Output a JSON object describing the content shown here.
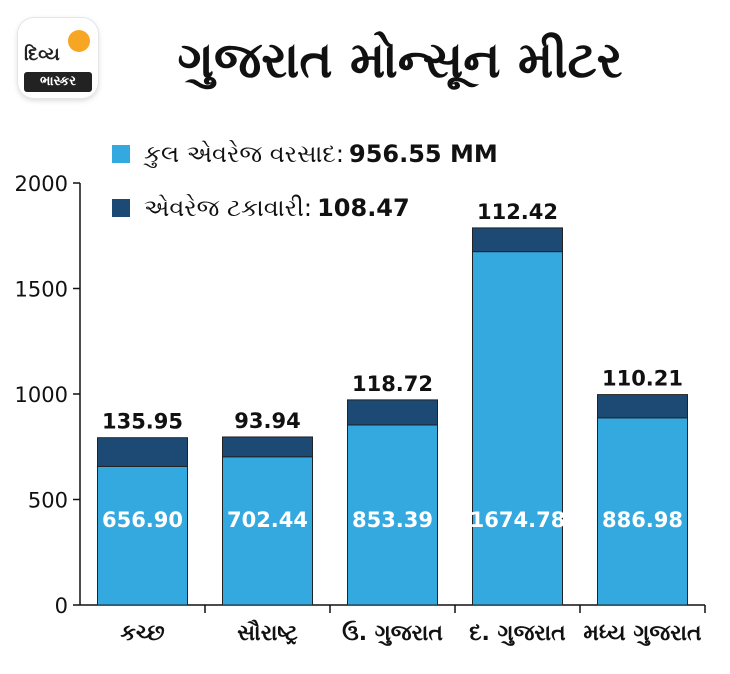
{
  "logo": {
    "line1": "દિવ્ય",
    "line2": "ભાસ્કર"
  },
  "title": "ગુજરાત મોન્સૂન મીટર",
  "colors": {
    "total": "#33a9e0",
    "percent": "#1c4a74",
    "axis": "#111111"
  },
  "legend": [
    {
      "label": "કુલ એવરેજ વરસાદ:",
      "value": "956.55 MM",
      "color": "#33a9e0"
    },
    {
      "label": "એવરેજ ટકાવારી:",
      "value": "108.47",
      "color": "#1c4a74"
    }
  ],
  "chart_data": {
    "type": "bar",
    "stacked": true,
    "categories": [
      "કચ્છ",
      "સૌરાષ્ટ્ર",
      "ઉ. ગુજરાત",
      "દ. ગુજરાત",
      "મધ્ય ગુજરાત"
    ],
    "series": [
      {
        "name": "કુલ એવરેજ વરસાદ",
        "values": [
          656.9,
          702.44,
          853.39,
          1674.78,
          886.98
        ]
      },
      {
        "name": "એવરેજ ટકાવારી",
        "values": [
          135.95,
          93.94,
          118.72,
          112.42,
          110.21
        ]
      }
    ],
    "bar_label_top": [
      "135.95",
      "93.94",
      "118.72",
      "112.42",
      "110.21"
    ],
    "bar_label_inside": [
      "656.90",
      "702.44",
      "853.39",
      "1674.78",
      "886.98"
    ],
    "yticks": [
      "0",
      "500",
      "1000",
      "1500",
      "2000"
    ],
    "ylim": [
      0,
      2000
    ],
    "grid": false,
    "legend_position": "top-left"
  }
}
